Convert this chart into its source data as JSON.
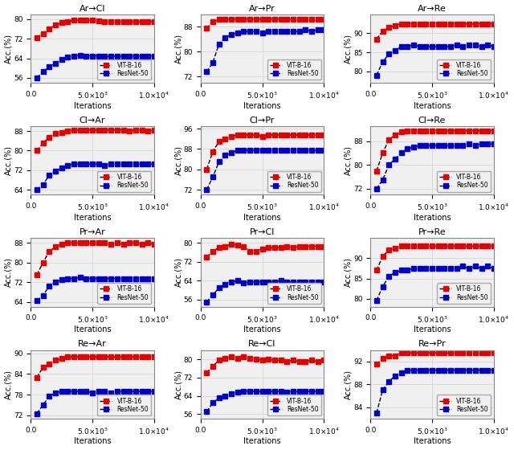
{
  "subplots": [
    {
      "title": "Ar→Cl",
      "ylim": [
        54,
        82
      ],
      "yticks": [
        56,
        64,
        72,
        80
      ],
      "red": [
        72.5,
        74.0,
        76.0,
        77.5,
        78.5,
        79.0,
        79.5,
        79.5,
        79.5,
        79.5,
        79.3,
        79.0,
        78.8,
        79.0,
        78.8,
        79.0,
        79.0,
        78.8,
        79.0,
        79.0
      ],
      "blue": [
        56.0,
        58.5,
        60.5,
        62.0,
        63.5,
        64.5,
        65.0,
        65.2,
        65.0,
        65.0,
        65.0,
        64.8,
        64.8,
        65.0,
        64.8,
        65.0,
        65.0,
        65.0,
        65.0,
        65.0
      ]
    },
    {
      "title": "Ar→Pr",
      "ylim": [
        70,
        92
      ],
      "yticks": [
        72,
        80,
        88
      ],
      "red": [
        87.5,
        89.5,
        90.3,
        90.5,
        90.5,
        90.5,
        90.5,
        90.5,
        90.5,
        90.5,
        90.5,
        90.5,
        90.5,
        90.5,
        90.5,
        90.5,
        90.5,
        90.5,
        90.5,
        90.5
      ],
      "blue": [
        73.5,
        76.5,
        82.5,
        84.5,
        85.5,
        86.0,
        86.5,
        86.5,
        86.5,
        86.0,
        86.5,
        86.5,
        86.5,
        86.5,
        86.5,
        86.5,
        87.0,
        86.5,
        87.0,
        87.0
      ]
    },
    {
      "title": "Ar→Re",
      "ylim": [
        77,
        95
      ],
      "yticks": [
        80,
        85,
        90
      ],
      "red": [
        88.5,
        90.5,
        91.5,
        92.0,
        92.5,
        92.5,
        92.5,
        92.5,
        92.5,
        92.5,
        92.5,
        92.5,
        92.5,
        92.5,
        92.5,
        92.5,
        92.5,
        92.5,
        92.5,
        92.5
      ],
      "blue": [
        79.0,
        82.5,
        84.5,
        85.5,
        86.5,
        86.5,
        87.0,
        86.5,
        86.5,
        86.5,
        86.5,
        86.5,
        86.5,
        87.0,
        86.5,
        87.0,
        87.0,
        86.5,
        87.0,
        86.5
      ]
    },
    {
      "title": "Cl→Ar",
      "ylim": [
        62,
        90
      ],
      "yticks": [
        64,
        72,
        80,
        88
      ],
      "red": [
        80.0,
        83.0,
        85.5,
        87.0,
        87.5,
        88.0,
        88.5,
        88.5,
        88.5,
        88.5,
        88.5,
        88.5,
        88.5,
        88.5,
        88.5,
        88.0,
        88.5,
        88.5,
        88.0,
        88.5
      ],
      "blue": [
        64.0,
        66.0,
        70.0,
        71.5,
        73.0,
        74.0,
        74.5,
        74.5,
        74.5,
        74.5,
        74.5,
        74.0,
        74.5,
        74.5,
        74.5,
        74.5,
        74.5,
        74.5,
        74.5,
        74.5
      ]
    },
    {
      "title": "Cl→Pr",
      "ylim": [
        70,
        97
      ],
      "yticks": [
        72,
        80,
        88,
        96
      ],
      "red": [
        80.0,
        87.0,
        91.0,
        92.0,
        93.0,
        93.5,
        93.5,
        93.5,
        93.5,
        93.0,
        93.5,
        93.5,
        93.5,
        93.5,
        93.5,
        93.5,
        93.5,
        93.5,
        93.5,
        93.5
      ],
      "blue": [
        72.0,
        77.0,
        83.0,
        85.5,
        86.5,
        87.5,
        87.5,
        87.5,
        87.5,
        87.5,
        87.5,
        87.5,
        87.5,
        87.5,
        87.5,
        87.5,
        87.5,
        87.5,
        87.5,
        87.5
      ]
    },
    {
      "title": "Cl→Re",
      "ylim": [
        70,
        93
      ],
      "yticks": [
        72,
        80,
        88
      ],
      "red": [
        78.0,
        84.0,
        88.5,
        90.0,
        91.0,
        91.5,
        91.5,
        91.5,
        91.5,
        91.5,
        91.5,
        91.5,
        91.5,
        91.5,
        91.5,
        91.5,
        91.5,
        91.5,
        91.5,
        91.5
      ],
      "blue": [
        72.0,
        75.0,
        80.0,
        82.0,
        84.0,
        85.5,
        86.0,
        86.5,
        86.5,
        86.5,
        86.5,
        86.5,
        86.5,
        86.5,
        86.5,
        87.0,
        86.5,
        87.0,
        87.0,
        87.0
      ]
    },
    {
      "title": "Pr→Ar",
      "ylim": [
        62,
        90
      ],
      "yticks": [
        64,
        72,
        80,
        88
      ],
      "red": [
        75.0,
        80.0,
        84.5,
        86.5,
        87.5,
        88.0,
        88.0,
        88.0,
        88.0,
        88.0,
        88.0,
        88.0,
        87.5,
        88.0,
        87.5,
        88.0,
        88.0,
        87.5,
        88.0,
        87.5
      ],
      "blue": [
        64.5,
        66.5,
        70.5,
        72.0,
        73.0,
        73.5,
        73.5,
        74.0,
        73.5,
        73.5,
        73.5,
        73.5,
        73.5,
        73.5,
        73.5,
        73.5,
        73.5,
        73.5,
        73.5,
        73.5
      ]
    },
    {
      "title": "Pr→Cl",
      "ylim": [
        53,
        82
      ],
      "yticks": [
        56,
        64,
        72,
        80
      ],
      "red": [
        74.0,
        76.5,
        78.0,
        78.5,
        79.5,
        79.0,
        78.5,
        76.5,
        76.5,
        77.5,
        78.0,
        78.0,
        78.0,
        78.5,
        78.0,
        78.5,
        78.5,
        78.5,
        78.5,
        78.5
      ],
      "blue": [
        55.0,
        58.0,
        61.0,
        62.5,
        63.5,
        64.0,
        63.0,
        63.5,
        63.5,
        63.5,
        63.5,
        63.5,
        64.0,
        63.5,
        63.5,
        63.5,
        63.5,
        63.5,
        63.5,
        63.5
      ]
    },
    {
      "title": "Pr→Re",
      "ylim": [
        78,
        95
      ],
      "yticks": [
        80,
        85,
        90
      ],
      "red": [
        87.0,
        90.5,
        92.0,
        92.5,
        93.0,
        93.0,
        93.0,
        93.0,
        93.0,
        93.0,
        93.0,
        93.0,
        93.0,
        93.0,
        93.0,
        93.0,
        93.0,
        93.0,
        93.0,
        93.0
      ],
      "blue": [
        79.5,
        83.0,
        85.5,
        86.5,
        87.0,
        87.0,
        87.5,
        87.5,
        87.5,
        87.5,
        87.5,
        87.5,
        87.5,
        87.5,
        88.0,
        87.5,
        88.0,
        87.5,
        88.0,
        87.5
      ]
    },
    {
      "title": "Re→Ar",
      "ylim": [
        71,
        91
      ],
      "yticks": [
        72,
        78,
        84,
        90
      ],
      "red": [
        83.0,
        86.0,
        87.0,
        88.0,
        88.5,
        89.0,
        89.0,
        89.0,
        89.0,
        89.0,
        89.0,
        89.0,
        89.0,
        89.0,
        89.0,
        89.0,
        89.0,
        89.0,
        89.0,
        89.0
      ],
      "blue": [
        72.5,
        75.0,
        77.5,
        78.5,
        79.0,
        79.0,
        79.0,
        79.0,
        79.0,
        78.5,
        79.0,
        79.0,
        78.5,
        79.0,
        79.0,
        79.0,
        79.0,
        79.0,
        79.0,
        79.0
      ]
    },
    {
      "title": "Re→Cl",
      "ylim": [
        54,
        84
      ],
      "yticks": [
        56,
        64,
        72,
        80
      ],
      "red": [
        74.0,
        77.0,
        79.5,
        80.5,
        81.0,
        80.5,
        81.0,
        80.5,
        80.0,
        79.5,
        80.0,
        79.5,
        79.5,
        79.0,
        79.5,
        79.0,
        79.0,
        79.5,
        79.0,
        79.5
      ],
      "blue": [
        57.0,
        61.0,
        63.0,
        64.0,
        65.0,
        65.5,
        66.0,
        66.0,
        66.0,
        66.0,
        66.0,
        66.0,
        66.0,
        65.5,
        66.0,
        66.0,
        66.0,
        66.0,
        66.0,
        66.0
      ]
    },
    {
      "title": "Re→Pr",
      "ylim": [
        82,
        94
      ],
      "yticks": [
        84,
        88,
        92
      ],
      "red": [
        91.5,
        92.5,
        93.0,
        93.0,
        93.5,
        93.5,
        93.5,
        93.5,
        93.5,
        93.5,
        93.5,
        93.5,
        93.5,
        93.5,
        93.5,
        93.5,
        93.5,
        93.5,
        93.5,
        93.5
      ],
      "blue": [
        83.0,
        87.0,
        88.5,
        89.5,
        90.0,
        90.5,
        90.5,
        90.5,
        90.5,
        90.5,
        90.5,
        90.5,
        90.5,
        90.5,
        90.5,
        90.5,
        90.5,
        90.5,
        90.5,
        90.5
      ]
    }
  ],
  "red_color": "#e60000",
  "blue_color": "#0000cc",
  "line_color": "#000000",
  "xlabel": "Iterations",
  "ylabel": "Acc.(%)",
  "legend_red": "VIT-B-16",
  "legend_blue": "ResNet-50",
  "marker": "s",
  "markersize": 4.5,
  "linewidth": 1.0,
  "linestyle": "--",
  "figsize": [
    6.4,
    5.6
  ],
  "dpi": 100,
  "n_points": 20,
  "x_max": 10000,
  "grid_color": "#d0d0d0",
  "bg_color": "#f0f0f0"
}
